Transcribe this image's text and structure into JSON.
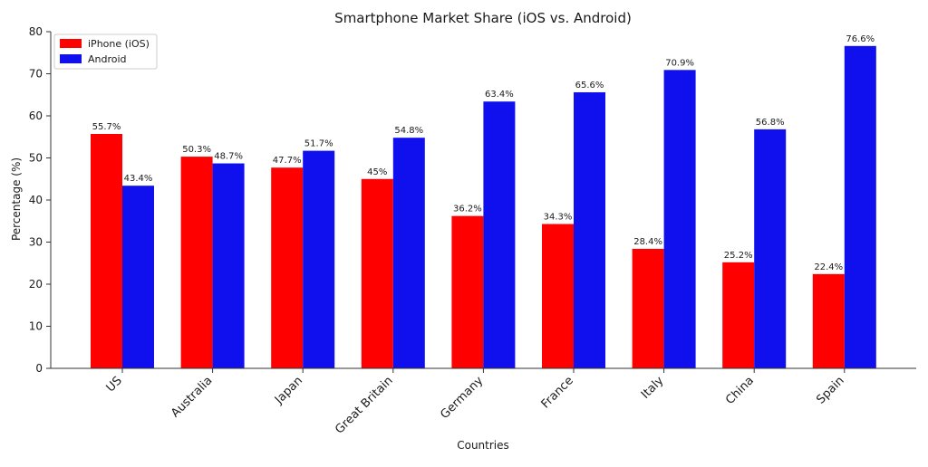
{
  "chart_data": {
    "type": "bar",
    "title": "Smartphone Market Share (iOS vs. Android)",
    "xlabel": "Countries",
    "ylabel": "Percentage (%)",
    "ylim": [
      0,
      80
    ],
    "yticks": [
      0,
      10,
      20,
      30,
      40,
      50,
      60,
      70,
      80
    ],
    "grid": false,
    "legend_position": "top-left",
    "categories": [
      "US",
      "Australia",
      "Japan",
      "Great Britain",
      "Germany",
      "France",
      "Italy",
      "China",
      "Spain"
    ],
    "series": [
      {
        "name": "iPhone (iOS)",
        "color": "#ff0000",
        "values": [
          55.7,
          50.3,
          47.7,
          45,
          36.2,
          34.3,
          28.4,
          25.2,
          22.4
        ],
        "labels": [
          "55.7%",
          "50.3%",
          "47.7%",
          "45%",
          "36.2%",
          "34.3%",
          "28.4%",
          "25.2%",
          "22.4%"
        ]
      },
      {
        "name": "Android",
        "color": "#1010ee",
        "values": [
          43.4,
          48.7,
          51.7,
          54.8,
          63.4,
          65.6,
          70.9,
          56.8,
          76.6
        ],
        "labels": [
          "43.4%",
          "48.7%",
          "51.7%",
          "54.8%",
          "63.4%",
          "65.6%",
          "70.9%",
          "56.8%",
          "76.6%"
        ]
      }
    ]
  }
}
